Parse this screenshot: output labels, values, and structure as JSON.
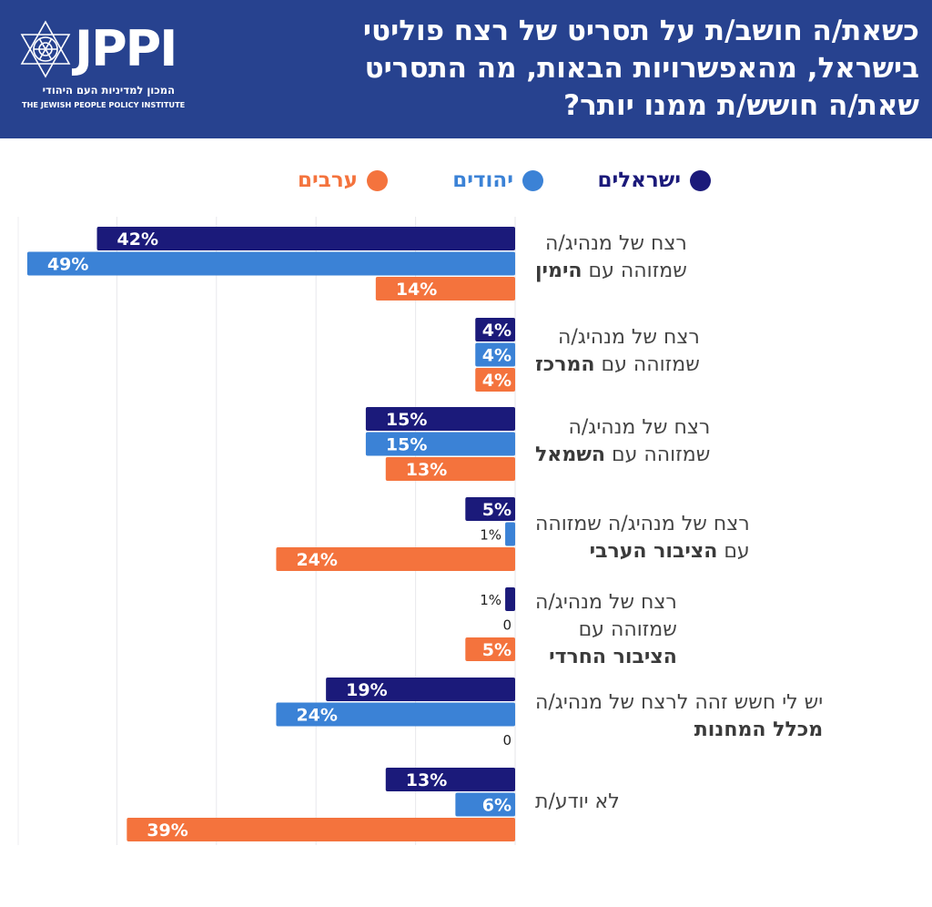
{
  "header": {
    "title_lines": [
      "כשאת/ה חושב/ת על תסריט של רצח פוליטי",
      "בישראל, מהאפשרויות הבאות, מה התסריט",
      "שאת/ה חושש/ת ממנו יותר?"
    ],
    "logo": {
      "name": "JPPI",
      "hebrew": "המכון למדיניות העם היהודי",
      "english": "THE JEWISH PEOPLE POLICY INSTITUTE"
    }
  },
  "colors": {
    "header_bg": "#27428f",
    "israelis": "#1b1a7a",
    "jews": "#3b82d6",
    "arabs": "#f4733d"
  },
  "chart_data": {
    "type": "bar",
    "orientation": "horizontal",
    "title": "כשאת/ה חושב/ת על תסריט של רצח פוליטי בישראל, מהאפשרויות הבאות, מה התסריט שאת/ה חושש/ת ממנו יותר?",
    "xlabel": "",
    "ylabel": "",
    "xlim": [
      0,
      50
    ],
    "grid": true,
    "legend_position": "top",
    "unit": "%",
    "categories": [
      {
        "line1": "רצח של מנהיג/ה",
        "line2_plain": "שמזוהה עם ",
        "line2_bold": "הימין",
        "line3_bold": ""
      },
      {
        "line1": "רצח של מנהיג/ה",
        "line2_plain": "שמזוהה עם ",
        "line2_bold": "המרכז",
        "line3_bold": ""
      },
      {
        "line1": "רצח של מנהיג/ה",
        "line2_plain": "שמזוהה עם ",
        "line2_bold": "השמאל",
        "line3_bold": ""
      },
      {
        "line1": "רצח של מנהיג/ה שמזוהה",
        "line2_plain": "עם ",
        "line2_bold": "הציבור הערבי",
        "line3_bold": ""
      },
      {
        "line1": "רצח של מנהיג/ה",
        "line2_plain": "שמזוהה עם",
        "line2_bold": "",
        "line3_bold": "הציבור החרדי"
      },
      {
        "line1": "יש לי חשש זהה לרצח של מנהיג/ה",
        "line2_plain": "",
        "line2_bold": "מכלל המחנות",
        "line3_bold": ""
      },
      {
        "line1": "",
        "line2_plain": "לא יודע/ת",
        "line2_bold": "",
        "line3_bold": ""
      }
    ],
    "series": [
      {
        "name": "ישראלים",
        "color": "#1b1a7a",
        "values": [
          42,
          4,
          15,
          5,
          1,
          19,
          13
        ],
        "labels": [
          "42%",
          "4%",
          "15%",
          "5%",
          "1%",
          "19%",
          "13%"
        ]
      },
      {
        "name": "יהודים",
        "color": "#3b82d6",
        "values": [
          49,
          4,
          15,
          1,
          0,
          24,
          6
        ],
        "labels": [
          "49%",
          "4%",
          "15%",
          "1%",
          "0",
          "24%",
          "6%"
        ]
      },
      {
        "name": "ערבים",
        "color": "#f4733d",
        "values": [
          14,
          4,
          13,
          24,
          5,
          0,
          39
        ],
        "labels": [
          "14%",
          "4%",
          "13%",
          "24%",
          "5%",
          "0",
          "39%"
        ]
      }
    ]
  }
}
